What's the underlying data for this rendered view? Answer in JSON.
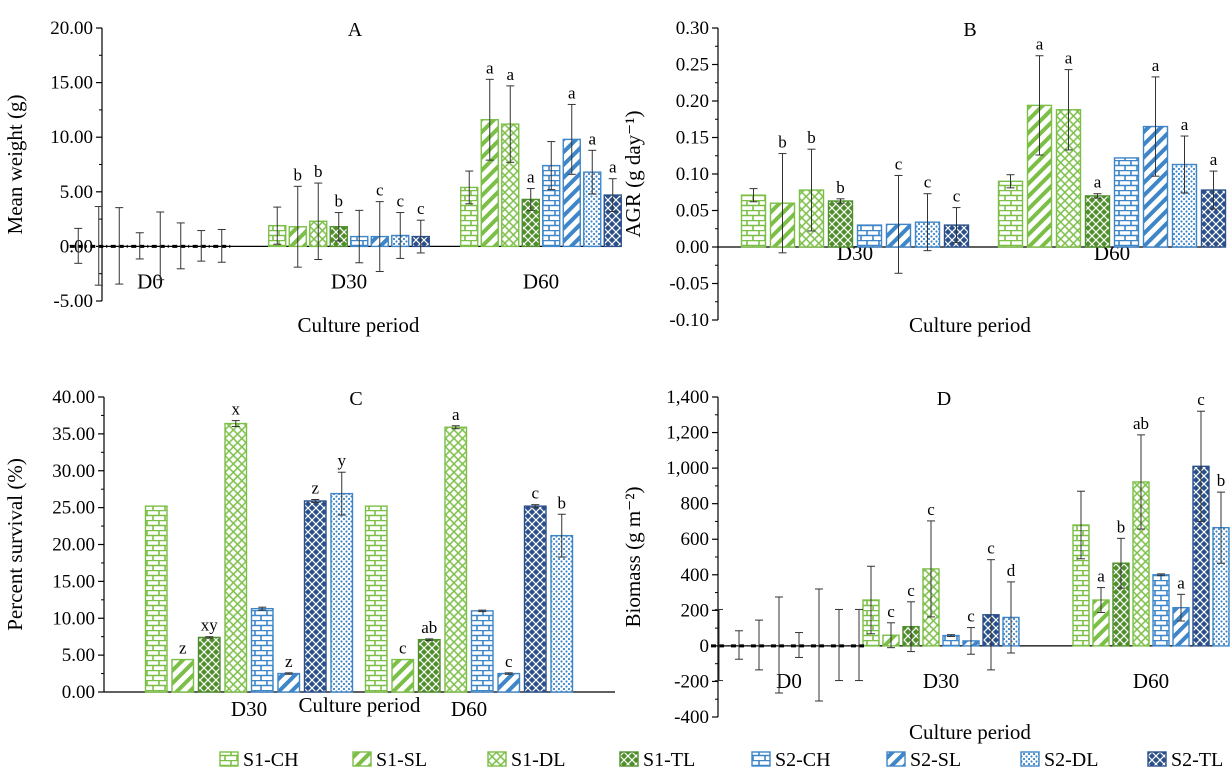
{
  "colors": {
    "S1-CH": "#7cbf47",
    "S1-SL": "#7cbf47",
    "S1-DL": "#7cbf47",
    "S1-TL": "#7cbf47",
    "S2-CH": "#3f86c8",
    "S2-SL": "#3f86c8",
    "S2-DL": "#3f86c8",
    "S2-TL": "#3f86c8",
    "S1-TL-dark": "#4f8f2b",
    "S2-TL-dark": "#2a4f8a"
  },
  "legend": [
    {
      "name": "S1-CH",
      "pattern": "brick",
      "color": "#7cbf47"
    },
    {
      "name": "S1-SL",
      "pattern": "diagonal",
      "color": "#7cbf47"
    },
    {
      "name": "S1-DL",
      "pattern": "cross",
      "color": "#7cbf47"
    },
    {
      "name": "S1-TL",
      "pattern": "weave",
      "color": "#4f8f2b"
    },
    {
      "name": "S2-CH",
      "pattern": "brick",
      "color": "#3f86c8"
    },
    {
      "name": "S2-SL",
      "pattern": "diagonal",
      "color": "#3f86c8"
    },
    {
      "name": "S2-DL",
      "pattern": "dots",
      "color": "#3f86c8"
    },
    {
      "name": "S2-TL",
      "pattern": "weave",
      "color": "#2a4f8a"
    }
  ],
  "chart_data": [
    {
      "panel": "A",
      "type": "bar",
      "title": "A",
      "xlabel": "Culture period",
      "ylabel": "Mean weight (g)",
      "ylim": [
        -5,
        20
      ],
      "yticks": [
        "-5.00",
        "0.00",
        "5.00",
        "10.00",
        "15.00",
        "20.00"
      ],
      "categories": [
        "D0",
        "D30",
        "D60"
      ],
      "series_order": [
        "S1-CH",
        "S1-SL",
        "S1-DL",
        "S1-TL",
        "S2-CH",
        "S2-SL",
        "S2-DL",
        "S2-TL"
      ],
      "series": [
        {
          "name": "S1-CH",
          "values": [
            0.05,
            1.9,
            5.4
          ],
          "errors": [
            1.6,
            1.7,
            1.5
          ],
          "letters": [
            "",
            "",
            ""
          ]
        },
        {
          "name": "S1-SL",
          "values": [
            0.05,
            1.8,
            11.6
          ],
          "errors": [
            3.6,
            3.7,
            3.7
          ],
          "letters": [
            "",
            "b",
            "a"
          ]
        },
        {
          "name": "S1-DL",
          "values": [
            0.05,
            2.3,
            11.2
          ],
          "errors": [
            3.5,
            3.5,
            3.5
          ],
          "letters": [
            "",
            "b",
            "a"
          ]
        },
        {
          "name": "S1-TL",
          "values": [
            0.05,
            1.8,
            4.3
          ],
          "errors": [
            1.2,
            1.3,
            1.0
          ],
          "letters": [
            "",
            "b",
            "a"
          ]
        },
        {
          "name": "S2-CH",
          "values": [
            0.05,
            0.9,
            7.4
          ],
          "errors": [
            3.1,
            2.4,
            2.2
          ],
          "letters": [
            "",
            "",
            ""
          ]
        },
        {
          "name": "S2-SL",
          "values": [
            0.05,
            0.9,
            9.8
          ],
          "errors": [
            2.1,
            3.2,
            3.2
          ],
          "letters": [
            "",
            "c",
            "a"
          ]
        },
        {
          "name": "S2-DL",
          "values": [
            0.05,
            1.0,
            6.8
          ],
          "errors": [
            1.4,
            2.1,
            2.0
          ],
          "letters": [
            "",
            "c",
            "a"
          ]
        },
        {
          "name": "S2-TL",
          "values": [
            0.05,
            0.9,
            4.7
          ],
          "errors": [
            1.5,
            1.5,
            1.5
          ],
          "letters": [
            "",
            "c",
            "a"
          ]
        }
      ]
    },
    {
      "panel": "B",
      "type": "bar",
      "title": "B",
      "xlabel": "Culture period",
      "ylabel": "AGR (g day⁻¹)",
      "ylim": [
        -0.1,
        0.3
      ],
      "yticks": [
        "-0.10",
        "-0.05",
        "0.00",
        "0.05",
        "0.10",
        "0.15",
        "0.20",
        "0.25",
        "0.30"
      ],
      "categories": [
        "D30",
        "D60"
      ],
      "series_order": [
        "S1-CH",
        "S1-SL",
        "S1-DL",
        "S1-TL",
        "S2-CH",
        "S2-SL",
        "S2-DL",
        "S2-TL"
      ],
      "series": [
        {
          "name": "S1-CH",
          "values": [
            0.071,
            0.09
          ],
          "errors": [
            0.009,
            0.009
          ],
          "letters": [
            "",
            ""
          ]
        },
        {
          "name": "S1-SL",
          "values": [
            0.06,
            0.194
          ],
          "errors": [
            0.068,
            0.068
          ],
          "letters": [
            "b",
            "a"
          ]
        },
        {
          "name": "S1-DL",
          "values": [
            0.078,
            0.188
          ],
          "errors": [
            0.056,
            0.055
          ],
          "letters": [
            "b",
            "a"
          ]
        },
        {
          "name": "S1-TL",
          "values": [
            0.063,
            0.07
          ],
          "errors": [
            0.003,
            0.003
          ],
          "letters": [
            "b",
            "a"
          ]
        },
        {
          "name": "S2-CH",
          "values": [
            0.03,
            0.122
          ],
          "errors": [
            0,
            0
          ],
          "letters": [
            "",
            ""
          ]
        },
        {
          "name": "S2-SL",
          "values": [
            0.031,
            0.165
          ],
          "errors": [
            0.067,
            0.068
          ],
          "letters": [
            "c",
            "a"
          ]
        },
        {
          "name": "S2-DL",
          "values": [
            0.034,
            0.113
          ],
          "errors": [
            0.039,
            0.039
          ],
          "letters": [
            "c",
            "a"
          ]
        },
        {
          "name": "S2-TL",
          "values": [
            0.03,
            0.078
          ],
          "errors": [
            0.024,
            0.026
          ],
          "letters": [
            "c",
            "a"
          ]
        }
      ]
    },
    {
      "panel": "C",
      "type": "bar",
      "title": "C",
      "xlabel": "Culture period",
      "ylabel": "Percent survival (%)",
      "ylim": [
        0,
        40
      ],
      "yticks": [
        "0.00",
        "5.00",
        "10.00",
        "15.00",
        "20.00",
        "25.00",
        "30.00",
        "35.00",
        "40.00"
      ],
      "categories": [
        "D30",
        "D60"
      ],
      "series_order": [
        "S1-CH",
        "S1-SL",
        "S1-TL",
        "S1-DL",
        "S2-CH",
        "S2-SL",
        "S2-TL",
        "S2-DL"
      ],
      "series": [
        {
          "name": "S1-CH",
          "values": [
            25.2,
            25.2
          ],
          "errors": [
            0,
            0
          ],
          "letters": [
            "",
            ""
          ]
        },
        {
          "name": "S1-SL",
          "values": [
            4.4,
            4.4
          ],
          "errors": [
            0,
            0
          ],
          "letters": [
            "z",
            "c"
          ]
        },
        {
          "name": "S1-TL",
          "values": [
            7.4,
            7.1
          ],
          "errors": [
            0.1,
            0.1
          ],
          "letters": [
            "xy",
            "ab"
          ]
        },
        {
          "name": "S1-DL",
          "values": [
            36.4,
            35.9
          ],
          "errors": [
            0.4,
            0.2
          ],
          "letters": [
            "x",
            "a"
          ]
        },
        {
          "name": "S2-CH",
          "values": [
            11.3,
            11.0
          ],
          "errors": [
            0.2,
            0.1
          ],
          "letters": [
            "",
            ""
          ]
        },
        {
          "name": "S2-SL",
          "values": [
            2.5,
            2.5
          ],
          "errors": [
            0.1,
            0.1
          ],
          "letters": [
            "z",
            "c"
          ]
        },
        {
          "name": "S2-TL",
          "values": [
            25.9,
            25.2
          ],
          "errors": [
            0.2,
            0.2
          ],
          "letters": [
            "z",
            "c"
          ]
        },
        {
          "name": "S2-DL",
          "values": [
            26.9,
            21.2
          ],
          "errors": [
            2.9,
            2.9
          ],
          "letters": [
            "y",
            "b"
          ]
        }
      ]
    },
    {
      "panel": "D",
      "type": "bar",
      "title": "D",
      "xlabel": "Culture period",
      "ylabel": "Biomass (g m⁻²)",
      "ylim": [
        -400,
        1400
      ],
      "yticks": [
        "-400",
        "-200",
        "0",
        "200",
        "400",
        "600",
        "800",
        "1,000",
        "1,200",
        "1,400"
      ],
      "categories": [
        "D0",
        "D30",
        "D60"
      ],
      "series_order": [
        "S1-CH",
        "S1-SL",
        "S1-TL",
        "S1-DL",
        "S2-CH",
        "S2-SL",
        "S2-TL",
        "S2-DL"
      ],
      "series": [
        {
          "name": "S1-CH",
          "values": [
            5,
            258,
            680
          ],
          "errors": [
            200,
            190,
            190
          ],
          "letters": [
            "",
            "",
            ""
          ]
        },
        {
          "name": "S1-SL",
          "values": [
            5,
            60,
            258
          ],
          "errors": [
            80,
            70,
            70
          ],
          "letters": [
            "",
            "c",
            "a"
          ]
        },
        {
          "name": "S1-TL",
          "values": [
            5,
            108,
            465
          ],
          "errors": [
            140,
            140,
            140
          ],
          "letters": [
            "",
            "c",
            "b"
          ]
        },
        {
          "name": "S1-DL",
          "values": [
            5,
            433,
            922
          ],
          "errors": [
            270,
            270,
            265
          ],
          "letters": [
            "",
            "c",
            "ab"
          ]
        },
        {
          "name": "S2-CH",
          "values": [
            5,
            58,
            400
          ],
          "errors": [
            70,
            5,
            5
          ],
          "letters": [
            "",
            "",
            ""
          ]
        },
        {
          "name": "S2-SL",
          "values": [
            5,
            28,
            215
          ],
          "errors": [
            315,
            75,
            75
          ],
          "letters": [
            "",
            "c",
            "a"
          ]
        },
        {
          "name": "S2-TL",
          "values": [
            5,
            175,
            1010
          ],
          "errors": [
            200,
            310,
            310
          ],
          "letters": [
            "",
            "c",
            "c"
          ]
        },
        {
          "name": "S2-DL",
          "values": [
            5,
            160,
            665
          ],
          "errors": [
            200,
            200,
            200
          ],
          "letters": [
            "",
            "d",
            "b"
          ]
        }
      ]
    }
  ]
}
